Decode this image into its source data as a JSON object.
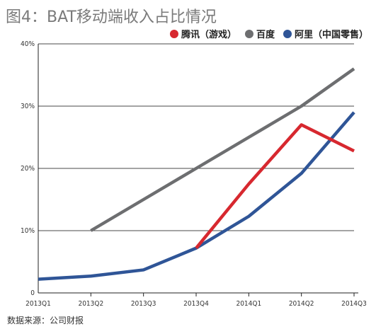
{
  "title": "图4：BAT移动端收入占比情况",
  "source": "数据来源：公司财报",
  "chart_data": {
    "type": "line",
    "x": [
      "2013Q1",
      "2013Q2",
      "2013Q3",
      "2013Q4",
      "2014Q1",
      "2014Q2",
      "2014Q3"
    ],
    "yticks": [
      "0",
      "10%",
      "20%",
      "30%",
      "40%"
    ],
    "ylim": [
      0,
      40
    ],
    "grid": true,
    "legend_position": "top-right",
    "series": [
      {
        "name": "腾讯（游戏）",
        "color": "#d7282f",
        "values": [
          null,
          null,
          null,
          7.2,
          17.5,
          27,
          22.8
        ]
      },
      {
        "name": "百度",
        "color": "#6d6e70",
        "values": [
          null,
          10,
          15,
          20,
          25,
          30,
          36
        ]
      },
      {
        "name": "阿里（中国零售）",
        "color": "#2f5597",
        "values": [
          2.2,
          2.7,
          3.7,
          7.2,
          12.3,
          19.2,
          29
        ]
      }
    ]
  }
}
